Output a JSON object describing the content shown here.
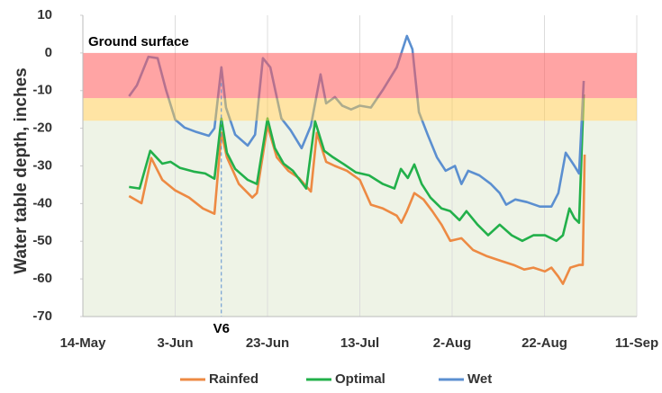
{
  "chart_data": {
    "type": "line",
    "y_label": "Water table depth, inches",
    "xlim": [
      0,
      120
    ],
    "xticks": [
      {
        "value": 0,
        "label": "14-May"
      },
      {
        "value": 20,
        "label": "3-Jun"
      },
      {
        "value": 40,
        "label": "23-Jun"
      },
      {
        "value": 60,
        "label": "13-Jul"
      },
      {
        "value": 80,
        "label": "2-Aug"
      },
      {
        "value": 100,
        "label": "22-Aug"
      },
      {
        "value": 120,
        "label": "11-Sep"
      }
    ],
    "ylim": [
      -70,
      10
    ],
    "yticks": [
      -70,
      -60,
      -50,
      -40,
      -30,
      -20,
      -10,
      0,
      10
    ],
    "grid": "x",
    "legend": "bottom",
    "bands": [
      {
        "from": -18,
        "to": -70,
        "color": "#eef3e6",
        "opacity": 1,
        "layer": "back"
      },
      {
        "from": 0,
        "to": -12,
        "color": "#ff5a5a",
        "opacity": 0.55,
        "layer": "front"
      },
      {
        "from": -12,
        "to": -18,
        "color": "#ffc94a",
        "opacity": 0.5,
        "layer": "front"
      }
    ],
    "annotations": [
      {
        "text": "Ground surface",
        "x": 0,
        "y": 0
      },
      {
        "text": "V6",
        "x": 30,
        "y": -70
      }
    ],
    "series": [
      {
        "name": "Rainfed",
        "color": "#ed8a43",
        "x": [
          10,
          12.7,
          14.8,
          17.2,
          20,
          23,
          26,
          28.5,
          30,
          31.2,
          33.8,
          36.7,
          37.7,
          40,
          42,
          44.5,
          46.8,
          49.4,
          50.7,
          52.7,
          54.6,
          57.2,
          60,
          62.4,
          65,
          68,
          69,
          70.2,
          71.8,
          73.8,
          75.7,
          77.7,
          79.6,
          82,
          84.5,
          87.4,
          90.3,
          93.3,
          95.6,
          97.6,
          100.1,
          101.5,
          103,
          104,
          105.6,
          107.5,
          108.3,
          108.7
        ],
        "values": [
          -38,
          -39.9,
          -27.9,
          -33.7,
          -36.5,
          -38.4,
          -41.3,
          -42.7,
          -21.2,
          -27.7,
          -34.8,
          -38.4,
          -37.2,
          -19.3,
          -27.7,
          -31.3,
          -33.2,
          -36.8,
          -21.2,
          -28.9,
          -30,
          -31.3,
          -33.7,
          -40.3,
          -41.3,
          -43.2,
          -45.1,
          -42,
          -37.2,
          -38.9,
          -42,
          -45.6,
          -49.9,
          -49.2,
          -52.3,
          -53.9,
          -55.1,
          -56.3,
          -57.5,
          -57,
          -58,
          -57,
          -59.4,
          -61.3,
          -57,
          -56.3,
          -56.3,
          -27
        ]
      },
      {
        "name": "Optimal",
        "color": "#22b04a",
        "x": [
          10,
          12.3,
          14.6,
          17.2,
          19,
          21,
          24,
          26.5,
          28.5,
          30,
          31.2,
          33,
          35.7,
          37.7,
          40,
          41.6,
          43.5,
          45.5,
          48.4,
          50.3,
          52.3,
          54.2,
          56.6,
          59.1,
          62,
          65,
          67.5,
          68.9,
          70.4,
          71.8,
          73.4,
          75.3,
          77.7,
          79.6,
          81.6,
          83.1,
          85.5,
          87.8,
          90.3,
          92.9,
          95.2,
          97.6,
          100.1,
          102.6,
          104,
          105.4,
          106.5,
          107.5,
          108.5
        ],
        "values": [
          -35.6,
          -36,
          -26,
          -29.4,
          -28.9,
          -30.5,
          -31.5,
          -32,
          -33.4,
          -17.4,
          -26.5,
          -30.8,
          -33.7,
          -34.8,
          -17.4,
          -25.3,
          -29.4,
          -31.3,
          -36,
          -18.1,
          -26,
          -27.7,
          -29.6,
          -31.7,
          -32.5,
          -34.8,
          -36,
          -30.8,
          -33.2,
          -29.6,
          -34.8,
          -38.4,
          -41.3,
          -42,
          -44.4,
          -42,
          -45.6,
          -48.4,
          -45.6,
          -48.4,
          -49.9,
          -48.4,
          -48.4,
          -49.9,
          -48.4,
          -41.3,
          -43.9,
          -45.1,
          -11
        ]
      },
      {
        "name": "Wet",
        "color": "#5b8fd0",
        "x": [
          10,
          11.7,
          14.2,
          16.2,
          18,
          20,
          22,
          24.6,
          27.3,
          28.5,
          30,
          31,
          33,
          35.7,
          37.3,
          39,
          40.6,
          43,
          45,
          47.4,
          49.4,
          51.5,
          52.7,
          54.6,
          56.2,
          58.1,
          60,
          62.4,
          65,
          68,
          70.2,
          71.4,
          72.8,
          74.7,
          76.7,
          78.6,
          80.6,
          82,
          83.5,
          85.9,
          88.4,
          90.3,
          91.7,
          93.7,
          96.2,
          99,
          101.5,
          103,
          104.6,
          106.5,
          107.5,
          108.5
        ],
        "values": [
          -11.5,
          -8.6,
          -1,
          -1.4,
          -9.8,
          -17.7,
          -19.8,
          -21,
          -22,
          -20,
          -3.8,
          -14.5,
          -21.7,
          -24.6,
          -21.7,
          -1.4,
          -3.8,
          -17.4,
          -20.5,
          -25.3,
          -19.3,
          -5.7,
          -13.4,
          -11.7,
          -14,
          -15,
          -14,
          -14.5,
          -9.8,
          -3.8,
          4.5,
          1,
          -15.7,
          -21.7,
          -27.7,
          -31.3,
          -30,
          -34.8,
          -31.3,
          -32.5,
          -34.8,
          -37.2,
          -40.3,
          -38.9,
          -39.6,
          -40.8,
          -40.8,
          -37.2,
          -26.5,
          -30,
          -32,
          -7.4
        ]
      }
    ]
  }
}
